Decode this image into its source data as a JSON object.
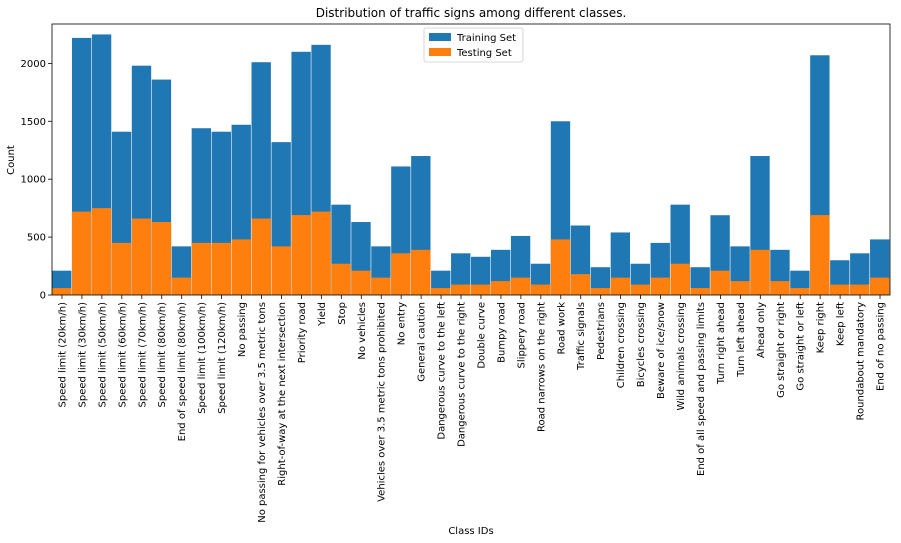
{
  "chart_data": {
    "type": "bar",
    "stacked": "overlay",
    "title": "Distribution of traffic signs among different classes.",
    "xlabel": "Class IDs",
    "ylabel": "Count",
    "ylim": [
      0,
      2340
    ],
    "yticks": [
      0,
      500,
      1000,
      1500,
      2000
    ],
    "grid": false,
    "legend_position": "top-center",
    "categories": [
      "Speed limit (20km/h)",
      "Speed limit (30km/h)",
      "Speed limit (50km/h)",
      "Speed limit (60km/h)",
      "Speed limit (70km/h)",
      "Speed limit (80km/h)",
      "End of speed limit (80km/h)",
      "Speed limit (100km/h)",
      "Speed limit (120km/h)",
      "No passing",
      "No passing for vehicles over 3.5 metric tons",
      "Right-of-way at the next intersection",
      "Priority road",
      "Yield",
      "Stop",
      "No vehicles",
      "Vehicles over 3.5 metric tons prohibited",
      "No entry",
      "General caution",
      "Dangerous curve to the left",
      "Dangerous curve to the right",
      "Double curve",
      "Bumpy road",
      "Slippery road",
      "Road narrows on the right",
      "Road work",
      "Traffic signals",
      "Pedestrians",
      "Children crossing",
      "Bicycles crossing",
      "Beware of ice/snow",
      "Wild animals crossing",
      "End of all speed and passing limits",
      "Turn right ahead",
      "Turn left ahead",
      "Ahead only",
      "Go straight or right",
      "Go straight or left",
      "Keep right",
      "Keep left",
      "Roundabout mandatory",
      "End of no passing"
    ],
    "series": [
      {
        "name": "Training Set",
        "color": "#1f77b4",
        "values": [
          210,
          2220,
          2250,
          1410,
          1980,
          1860,
          420,
          1440,
          1410,
          1470,
          2010,
          1320,
          2100,
          2160,
          780,
          630,
          420,
          1110,
          1200,
          210,
          360,
          330,
          390,
          510,
          270,
          1500,
          600,
          240,
          540,
          270,
          450,
          780,
          240,
          689,
          420,
          1200,
          390,
          210,
          2070,
          300,
          360,
          480
        ]
      },
      {
        "name": "Testing Set",
        "color": "#ff7f0e",
        "values": [
          60,
          720,
          750,
          450,
          660,
          630,
          150,
          450,
          450,
          480,
          660,
          420,
          690,
          720,
          270,
          210,
          150,
          360,
          390,
          60,
          90,
          90,
          120,
          150,
          90,
          480,
          180,
          60,
          150,
          90,
          150,
          270,
          60,
          210,
          120,
          390,
          120,
          60,
          690,
          90,
          90,
          150
        ]
      }
    ]
  }
}
